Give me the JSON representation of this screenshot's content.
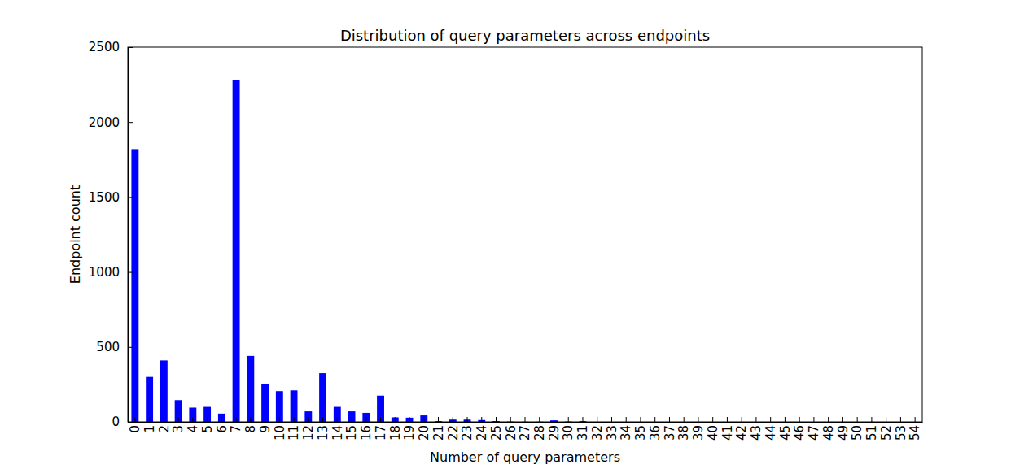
{
  "chart_data": {
    "type": "bar",
    "title": "Distribution of query parameters across endpoints",
    "x_label": "Number of query parameters",
    "y_label": "Endpoint count",
    "categories": [
      "0",
      "1",
      "2",
      "3",
      "4",
      "5",
      "6",
      "7",
      "8",
      "9",
      "10",
      "11",
      "12",
      "13",
      "14",
      "15",
      "16",
      "17",
      "18",
      "19",
      "20",
      "21",
      "22",
      "23",
      "24",
      "25",
      "26",
      "27",
      "28",
      "29",
      "30",
      "31",
      "32",
      "33",
      "34",
      "35",
      "36",
      "37",
      "38",
      "39",
      "40",
      "41",
      "42",
      "43",
      "44",
      "45",
      "46",
      "47",
      "48",
      "49",
      "50",
      "51",
      "52",
      "53",
      "54"
    ],
    "values": [
      1820,
      300,
      410,
      145,
      95,
      100,
      55,
      2280,
      440,
      255,
      205,
      210,
      70,
      325,
      100,
      70,
      60,
      175,
      30,
      28,
      43,
      5,
      15,
      15,
      12,
      5,
      2,
      1,
      1,
      10,
      2,
      5,
      0,
      0,
      0,
      0,
      0,
      0,
      0,
      0,
      0,
      0,
      0,
      0,
      0,
      0,
      0,
      0,
      0,
      0,
      0,
      0,
      0,
      0,
      0
    ],
    "color": "#0000ff",
    "ylim": [
      0,
      2500
    ],
    "yticks": [
      0,
      500,
      1000,
      1500,
      2000,
      2500
    ]
  }
}
